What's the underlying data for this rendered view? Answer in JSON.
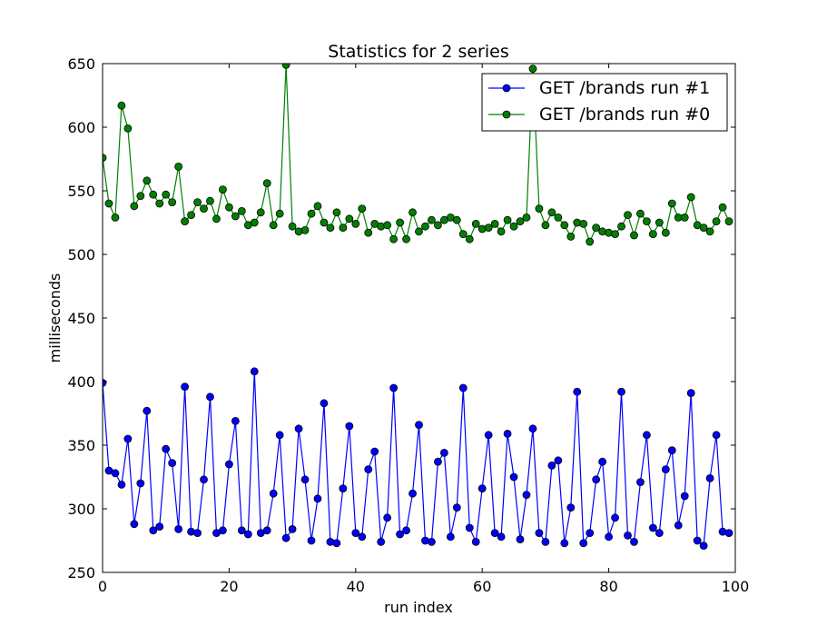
{
  "chart_data": {
    "type": "line",
    "title": "Statistics for 2 series",
    "xlabel": "run index",
    "ylabel": "milliseconds",
    "xlim": [
      0,
      100
    ],
    "ylim": [
      250,
      650
    ],
    "xticks": [
      0,
      20,
      40,
      60,
      80,
      100
    ],
    "yticks": [
      250,
      300,
      350,
      400,
      450,
      500,
      550,
      600,
      650
    ],
    "grid": false,
    "legend_position": "top-right",
    "series": [
      {
        "name": "GET /brands run #1",
        "color": "#0000ff",
        "x": [
          0,
          1,
          2,
          3,
          4,
          5,
          6,
          7,
          8,
          9,
          10,
          11,
          12,
          13,
          14,
          15,
          16,
          17,
          18,
          19,
          20,
          21,
          22,
          23,
          24,
          25,
          26,
          27,
          28,
          29,
          30,
          31,
          32,
          33,
          34,
          35,
          36,
          37,
          38,
          39,
          40,
          41,
          42,
          43,
          44,
          45,
          46,
          47,
          48,
          49,
          50,
          51,
          52,
          53,
          54,
          55,
          56,
          57,
          58,
          59,
          60,
          61,
          62,
          63,
          64,
          65,
          66,
          67,
          68,
          69,
          70,
          71,
          72,
          73,
          74,
          75,
          76,
          77,
          78,
          79,
          80,
          81,
          82,
          83,
          84,
          85,
          86,
          87,
          88,
          89,
          90,
          91,
          92,
          93,
          94,
          95,
          96,
          97,
          98,
          99
        ],
        "values": [
          399,
          330,
          328,
          319,
          355,
          288,
          320,
          377,
          283,
          286,
          347,
          336,
          284,
          396,
          282,
          281,
          323,
          388,
          281,
          283,
          335,
          369,
          283,
          280,
          408,
          281,
          283,
          312,
          358,
          277,
          284,
          363,
          323,
          275,
          308,
          383,
          274,
          273,
          316,
          365,
          281,
          278,
          331,
          345,
          274,
          293,
          395,
          280,
          283,
          312,
          366,
          275,
          274,
          337,
          344,
          278,
          301,
          395,
          285,
          274,
          316,
          358,
          281,
          278,
          359,
          325,
          276,
          311,
          363,
          281,
          274,
          334,
          338,
          273,
          301,
          392,
          273,
          281,
          323,
          337,
          278,
          293,
          392,
          279,
          274,
          321,
          358,
          285,
          281,
          331,
          346,
          287,
          310,
          391,
          275,
          271,
          324,
          358,
          282,
          281
        ]
      },
      {
        "name": "GET /brands run #0",
        "color": "#008000",
        "x": [
          0,
          1,
          2,
          3,
          4,
          5,
          6,
          7,
          8,
          9,
          10,
          11,
          12,
          13,
          14,
          15,
          16,
          17,
          18,
          19,
          20,
          21,
          22,
          23,
          24,
          25,
          26,
          27,
          28,
          29,
          30,
          31,
          32,
          33,
          34,
          35,
          36,
          37,
          38,
          39,
          40,
          41,
          42,
          43,
          44,
          45,
          46,
          47,
          48,
          49,
          50,
          51,
          52,
          53,
          54,
          55,
          56,
          57,
          58,
          59,
          60,
          61,
          62,
          63,
          64,
          65,
          66,
          67,
          68,
          69,
          70,
          71,
          72,
          73,
          74,
          75,
          76,
          77,
          78,
          79,
          80,
          81,
          82,
          83,
          84,
          85,
          86,
          87,
          88,
          89,
          90,
          91,
          92,
          93,
          94,
          95,
          96,
          97,
          98,
          99
        ],
        "values": [
          576,
          540,
          529,
          617,
          599,
          538,
          546,
          558,
          547,
          540,
          547,
          541,
          569,
          526,
          531,
          541,
          536,
          542,
          528,
          551,
          537,
          530,
          534,
          523,
          525,
          533,
          556,
          523,
          532,
          649,
          522,
          518,
          519,
          532,
          538,
          525,
          521,
          533,
          521,
          528,
          524,
          536,
          517,
          524,
          522,
          523,
          512,
          525,
          512,
          533,
          518,
          522,
          527,
          523,
          527,
          529,
          527,
          516,
          512,
          524,
          520,
          521,
          524,
          518,
          527,
          522,
          526,
          529,
          646,
          536,
          523,
          533,
          529,
          523,
          514,
          525,
          524,
          510,
          521,
          518,
          517,
          516,
          522,
          531,
          515,
          532,
          526,
          516,
          525,
          517,
          540,
          529,
          529,
          545,
          523,
          521,
          518,
          526,
          537,
          526
        ]
      }
    ]
  }
}
